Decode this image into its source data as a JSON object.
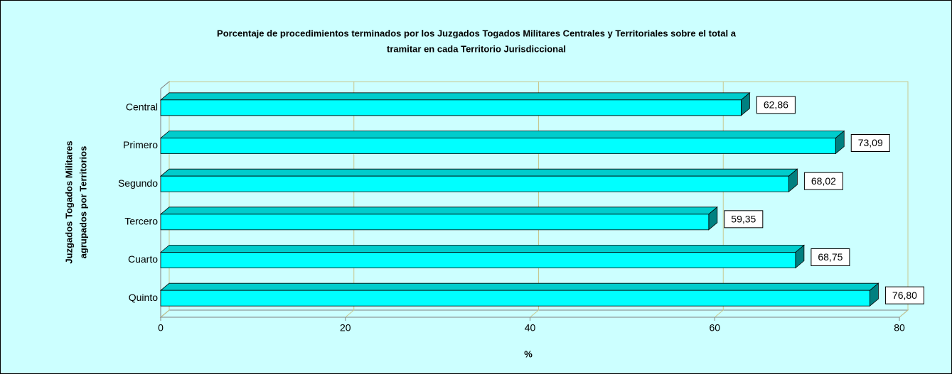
{
  "chart_data": {
    "type": "bar3d_horizontal",
    "title": [
      "Porcentaje de procedimientos terminados por los Juzgados Togados Militares Centrales y Territoriales sobre el total a",
      "tramitar en cada Territorio Jurisdiccional"
    ],
    "y_label": [
      "Juzgados Togados Militares",
      "agrupados por Territorios"
    ],
    "x_label": "%",
    "categories": [
      "Central",
      "Primero",
      "Segundo",
      "Tercero",
      "Cuarto",
      "Quinto"
    ],
    "values": [
      62.86,
      73.09,
      68.02,
      59.35,
      68.75,
      76.8
    ],
    "value_labels": [
      "62,86",
      "73,09",
      "68,02",
      "59,35",
      "68,75",
      "76,80"
    ],
    "color": "#00ffff",
    "xlim": [
      0,
      80
    ],
    "xticks": [
      0,
      20,
      40,
      60,
      80
    ],
    "grid": true
  }
}
